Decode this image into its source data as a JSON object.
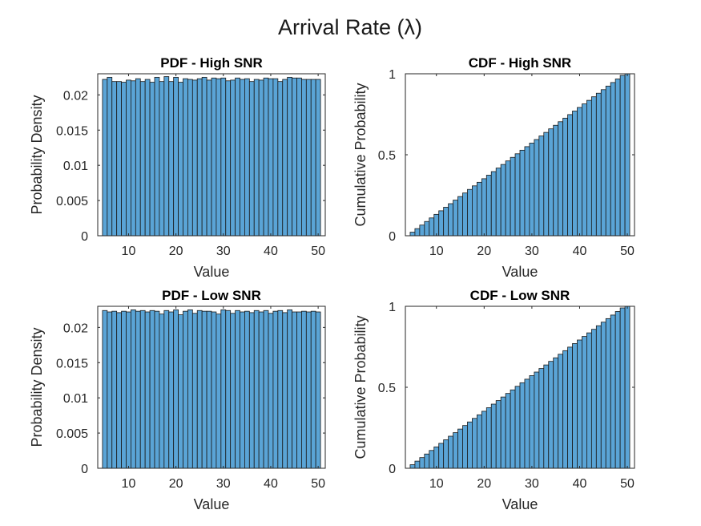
{
  "figure": {
    "title": "Arrival Rate (λ)"
  },
  "chart_data": [
    {
      "type": "bar",
      "title": "PDF - High SNR",
      "xlabel": "Value",
      "ylabel": "Probability Density",
      "xlim": [
        3.5,
        51.5
      ],
      "ylim": [
        0,
        0.023
      ],
      "xticks": [
        10,
        20,
        30,
        40,
        50
      ],
      "yticks": [
        0,
        0.005,
        0.01,
        0.015,
        0.02
      ],
      "ytick_labels": [
        "0",
        "0.005",
        "0.01",
        "0.015",
        "0.02"
      ],
      "x": [
        5,
        6,
        7,
        8,
        9,
        10,
        11,
        12,
        13,
        14,
        15,
        16,
        17,
        18,
        19,
        20,
        21,
        22,
        23,
        24,
        25,
        26,
        27,
        28,
        29,
        30,
        31,
        32,
        33,
        34,
        35,
        36,
        37,
        38,
        39,
        40,
        41,
        42,
        43,
        44,
        45,
        46,
        47,
        48,
        49,
        50
      ],
      "values": [
        0.0222,
        0.0225,
        0.0219,
        0.0219,
        0.0218,
        0.0221,
        0.022,
        0.0223,
        0.0219,
        0.0222,
        0.0218,
        0.0225,
        0.0219,
        0.0226,
        0.0219,
        0.0225,
        0.0218,
        0.0223,
        0.0222,
        0.0221,
        0.0223,
        0.0225,
        0.0221,
        0.0224,
        0.0223,
        0.0224,
        0.022,
        0.0221,
        0.0224,
        0.0222,
        0.0223,
        0.0219,
        0.0222,
        0.0221,
        0.0224,
        0.0223,
        0.0223,
        0.0219,
        0.0222,
        0.0225,
        0.0224,
        0.0224,
        0.0222,
        0.0222,
        0.0222,
        0.0222
      ]
    },
    {
      "type": "bar",
      "title": "CDF - High SNR",
      "xlabel": "Value",
      "ylabel": "Cumulative Probability",
      "xlim": [
        3.5,
        51.5
      ],
      "ylim": [
        0,
        1
      ],
      "xticks": [
        10,
        20,
        30,
        40,
        50
      ],
      "yticks": [
        0,
        0.5,
        1
      ],
      "ytick_labels": [
        "0",
        "0.5",
        "1"
      ],
      "x": [
        5,
        6,
        7,
        8,
        9,
        10,
        11,
        12,
        13,
        14,
        15,
        16,
        17,
        18,
        19,
        20,
        21,
        22,
        23,
        24,
        25,
        26,
        27,
        28,
        29,
        30,
        31,
        32,
        33,
        34,
        35,
        36,
        37,
        38,
        39,
        40,
        41,
        42,
        43,
        44,
        45,
        46,
        47,
        48,
        49,
        50
      ],
      "values": [
        0.022,
        0.044,
        0.066,
        0.088,
        0.11,
        0.132,
        0.154,
        0.176,
        0.198,
        0.22,
        0.242,
        0.264,
        0.286,
        0.308,
        0.33,
        0.352,
        0.374,
        0.396,
        0.418,
        0.44,
        0.462,
        0.484,
        0.506,
        0.528,
        0.55,
        0.572,
        0.594,
        0.616,
        0.638,
        0.66,
        0.682,
        0.704,
        0.726,
        0.748,
        0.77,
        0.792,
        0.814,
        0.836,
        0.858,
        0.88,
        0.902,
        0.924,
        0.946,
        0.968,
        0.99,
        1.0
      ]
    },
    {
      "type": "bar",
      "title": "PDF - Low SNR",
      "xlabel": "Value",
      "ylabel": "Probability Density",
      "xlim": [
        3.5,
        51.5
      ],
      "ylim": [
        0,
        0.023
      ],
      "xticks": [
        10,
        20,
        30,
        40,
        50
      ],
      "yticks": [
        0,
        0.005,
        0.01,
        0.015,
        0.02
      ],
      "ytick_labels": [
        "0",
        "0.005",
        "0.01",
        "0.015",
        "0.02"
      ],
      "x": [
        5,
        6,
        7,
        8,
        9,
        10,
        11,
        12,
        13,
        14,
        15,
        16,
        17,
        18,
        19,
        20,
        21,
        22,
        23,
        24,
        25,
        26,
        27,
        28,
        29,
        30,
        31,
        32,
        33,
        34,
        35,
        36,
        37,
        38,
        39,
        40,
        41,
        42,
        43,
        44,
        45,
        46,
        47,
        48,
        49,
        50
      ],
      "values": [
        0.0224,
        0.0222,
        0.0223,
        0.0221,
        0.0223,
        0.0222,
        0.0225,
        0.0223,
        0.0224,
        0.0222,
        0.0224,
        0.0223,
        0.0219,
        0.0224,
        0.0222,
        0.0225,
        0.0218,
        0.0223,
        0.0225,
        0.022,
        0.0224,
        0.0223,
        0.0223,
        0.0222,
        0.0219,
        0.0225,
        0.0224,
        0.022,
        0.0224,
        0.0222,
        0.0223,
        0.0221,
        0.0224,
        0.0222,
        0.0224,
        0.022,
        0.0223,
        0.0224,
        0.0221,
        0.0225,
        0.0222,
        0.0222,
        0.0223,
        0.0222,
        0.0223,
        0.0222
      ]
    },
    {
      "type": "bar",
      "title": "CDF - Low SNR",
      "xlabel": "Value",
      "ylabel": "Cumulative Probability",
      "xlim": [
        3.5,
        51.5
      ],
      "ylim": [
        0,
        1
      ],
      "xticks": [
        10,
        20,
        30,
        40,
        50
      ],
      "yticks": [
        0,
        0.5,
        1
      ],
      "ytick_labels": [
        "0",
        "0.5",
        "1"
      ],
      "x": [
        5,
        6,
        7,
        8,
        9,
        10,
        11,
        12,
        13,
        14,
        15,
        16,
        17,
        18,
        19,
        20,
        21,
        22,
        23,
        24,
        25,
        26,
        27,
        28,
        29,
        30,
        31,
        32,
        33,
        34,
        35,
        36,
        37,
        38,
        39,
        40,
        41,
        42,
        43,
        44,
        45,
        46,
        47,
        48,
        49,
        50
      ],
      "values": [
        0.022,
        0.044,
        0.066,
        0.088,
        0.11,
        0.132,
        0.154,
        0.176,
        0.198,
        0.22,
        0.242,
        0.264,
        0.286,
        0.308,
        0.33,
        0.352,
        0.374,
        0.396,
        0.418,
        0.44,
        0.462,
        0.484,
        0.506,
        0.528,
        0.55,
        0.572,
        0.594,
        0.616,
        0.638,
        0.66,
        0.682,
        0.704,
        0.726,
        0.748,
        0.77,
        0.792,
        0.814,
        0.836,
        0.858,
        0.88,
        0.902,
        0.924,
        0.946,
        0.968,
        0.99,
        1.0
      ]
    }
  ],
  "colors": {
    "bar_fill": "#5aa4d6",
    "bar_edge": "#1a1a1a",
    "axes": "#262626"
  }
}
